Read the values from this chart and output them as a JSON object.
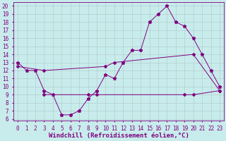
{
  "xlabel": "Windchill (Refroidissement éolien,°C)",
  "bg_color": "#c8ecec",
  "line_color": "#800080",
  "xlim": [
    -0.5,
    23.5
  ],
  "ylim": [
    6,
    20.5
  ],
  "xticks": [
    0,
    1,
    2,
    3,
    4,
    5,
    6,
    7,
    8,
    9,
    10,
    11,
    12,
    13,
    14,
    15,
    16,
    17,
    18,
    19,
    20,
    21,
    22,
    23
  ],
  "yticks": [
    6,
    7,
    8,
    9,
    10,
    11,
    12,
    13,
    14,
    15,
    16,
    17,
    18,
    19,
    20
  ],
  "temp_x": [
    0,
    1,
    2,
    3,
    4,
    5,
    6,
    7,
    8,
    9,
    10,
    11,
    12,
    13,
    14,
    15,
    16,
    17,
    18,
    19,
    20,
    21,
    22,
    23
  ],
  "temp_y": [
    13,
    12,
    12,
    9.5,
    9,
    6.5,
    6.5,
    7,
    8.5,
    9.5,
    11.5,
    11,
    13,
    14.5,
    14.5,
    18,
    19,
    20,
    18,
    17.5,
    16,
    14,
    12,
    10
  ],
  "upper_x": [
    0,
    3,
    10,
    11,
    20,
    23
  ],
  "upper_y": [
    12.5,
    12.0,
    12.5,
    13.0,
    14.0,
    9.5
  ],
  "lower_x": [
    3,
    8,
    9,
    19,
    20,
    23
  ],
  "lower_y": [
    9.0,
    9.0,
    9.0,
    9.0,
    9.0,
    9.5
  ],
  "grid_color": "#b0c8c8",
  "font_color": "#800080",
  "tick_fontsize": 5.5,
  "xlabel_fontsize": 6.5
}
